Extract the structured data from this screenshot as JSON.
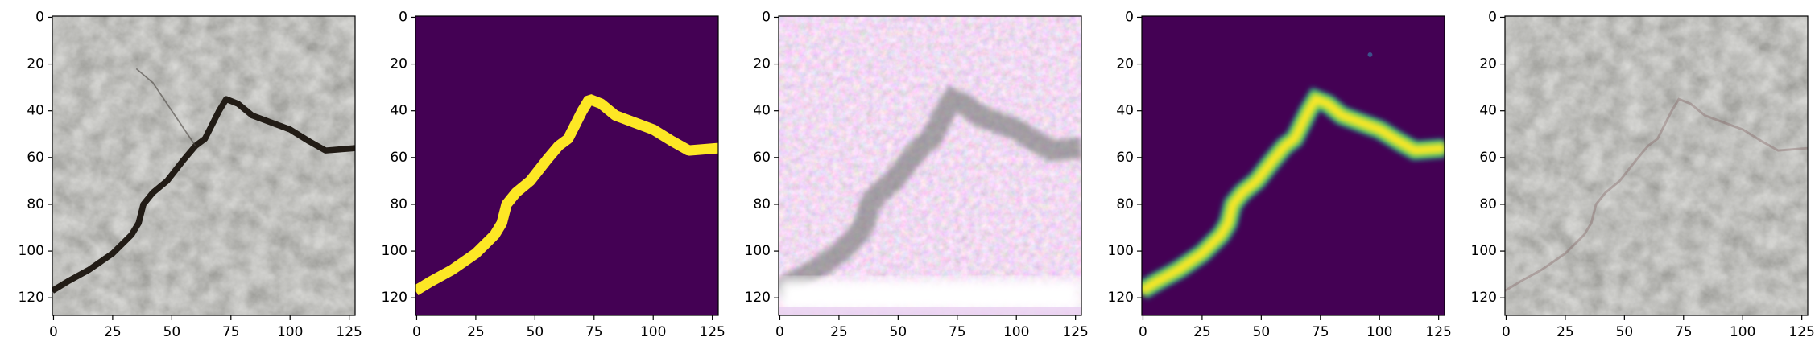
{
  "chart_data": [
    {
      "type": "image",
      "xlim": [
        -0.5,
        127.5
      ],
      "ylim": [
        127.5,
        -0.5
      ],
      "xticks": [
        0,
        25,
        50,
        75,
        100,
        125
      ],
      "yticks": [
        0,
        20,
        40,
        60,
        80,
        100,
        120
      ]
    },
    {
      "type": "image",
      "xlim": [
        -0.5,
        127.5
      ],
      "ylim": [
        127.5,
        -0.5
      ],
      "xticks": [
        0,
        25,
        50,
        75,
        100,
        125
      ],
      "yticks": [
        0,
        20,
        40,
        60,
        80,
        100,
        120
      ]
    },
    {
      "type": "image",
      "xlim": [
        -0.5,
        127.5
      ],
      "ylim": [
        127.5,
        -0.5
      ],
      "xticks": [
        0,
        25,
        50,
        75,
        100,
        125
      ],
      "yticks": [
        0,
        20,
        40,
        60,
        80,
        100,
        120
      ]
    },
    {
      "type": "image",
      "xlim": [
        -0.5,
        127.5
      ],
      "ylim": [
        127.5,
        -0.5
      ],
      "xticks": [
        0,
        25,
        50,
        75,
        100,
        125
      ],
      "yticks": [
        0,
        20,
        40,
        60,
        80,
        100,
        120
      ]
    },
    {
      "type": "image",
      "xlim": [
        -0.5,
        127.5
      ],
      "ylim": [
        127.5,
        -0.5
      ],
      "xticks": [
        0,
        25,
        50,
        75,
        100,
        125
      ],
      "yticks": [
        0,
        20,
        40,
        60,
        80,
        100,
        120
      ]
    }
  ]
}
